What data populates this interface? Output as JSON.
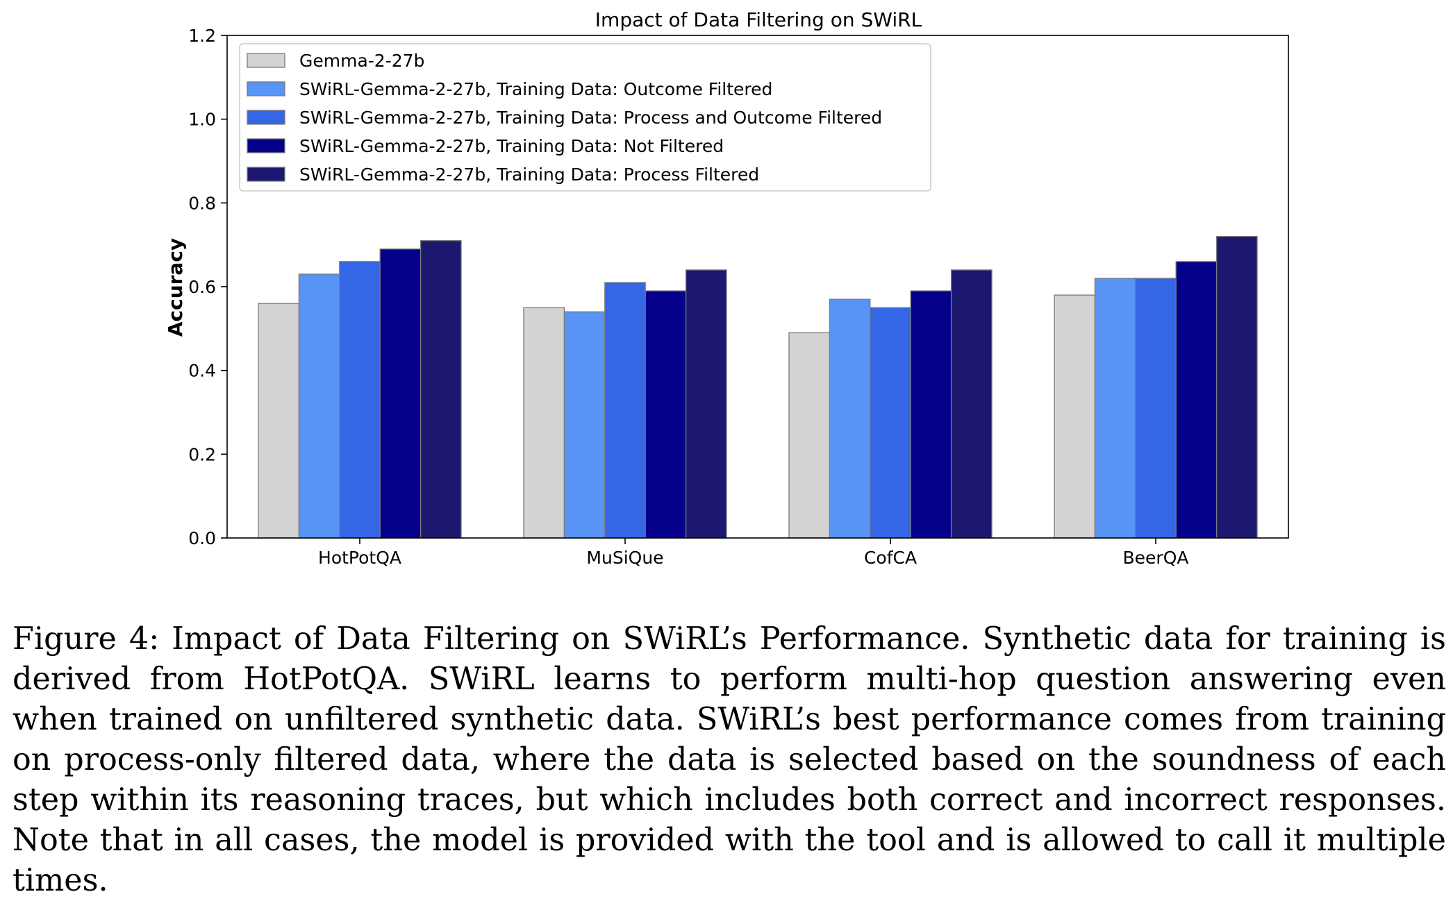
{
  "chart_data": {
    "type": "bar",
    "title": "Impact of Data Filtering on SWiRL",
    "xlabel": "",
    "ylabel": "Accuracy",
    "ylim": [
      0,
      1.2
    ],
    "yticks": [
      "0.0",
      "0.2",
      "0.4",
      "0.6",
      "0.8",
      "1.0",
      "1.2"
    ],
    "categories": [
      "HotPotQA",
      "MuSiQue",
      "CofCA",
      "BeerQA"
    ],
    "legend_position": "top-left",
    "series": [
      {
        "name": "Gemma-2-27b",
        "color": "#d3d3d3",
        "values": [
          0.56,
          0.55,
          0.49,
          0.58
        ]
      },
      {
        "name": "SWiRL-Gemma-2-27b, Training Data: Outcome Filtered",
        "color": "#5894f5",
        "values": [
          0.63,
          0.54,
          0.57,
          0.62
        ]
      },
      {
        "name": "SWiRL-Gemma-2-27b, Training Data: Process and Outcome Filtered",
        "color": "#3566e6",
        "values": [
          0.66,
          0.61,
          0.55,
          0.62
        ]
      },
      {
        "name": "SWiRL-Gemma-2-27b, Training Data: Not Filtered",
        "color": "#05008a",
        "values": [
          0.69,
          0.59,
          0.59,
          0.66
        ]
      },
      {
        "name": "SWiRL-Gemma-2-27b, Training Data: Process Filtered",
        "color": "#1c1870",
        "values": [
          0.71,
          0.64,
          0.64,
          0.72
        ]
      }
    ]
  },
  "caption": "Figure 4: Impact of Data Filtering on SWiRL’s Performance. Synthetic data for training is derived from HotPotQA. SWiRL learns to perform multi-hop question answering even when trained on unfiltered synthetic data. SWiRL’s best performance comes from training on process-only filtered data, where the data is selected based on the soundness of each step within its reasoning traces, but which includes both correct and incorrect responses. Note that in all cases, the model is provided with the tool and is allowed to call it multiple times."
}
